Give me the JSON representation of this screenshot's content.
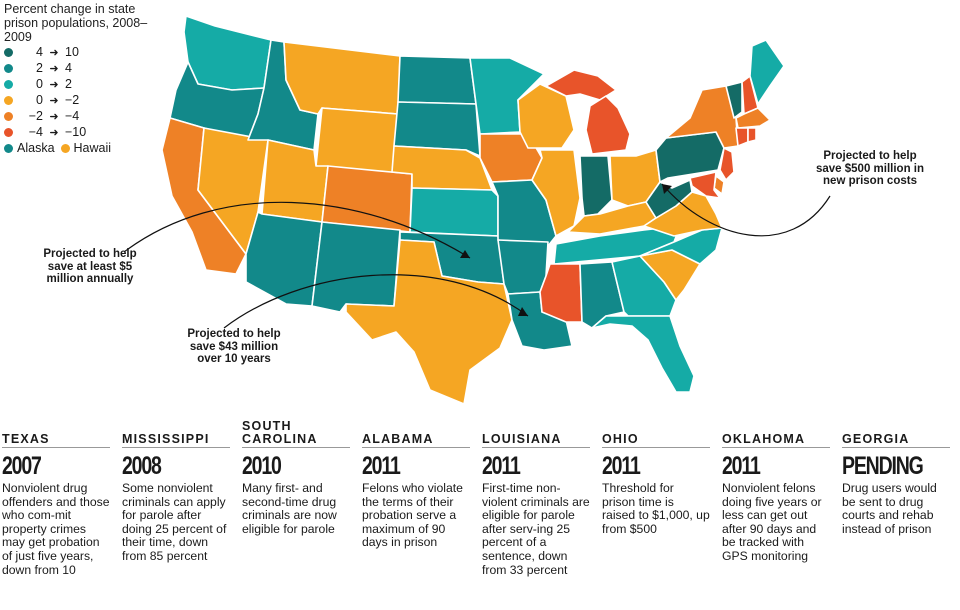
{
  "legend": {
    "title": "Percent change in state prison populations, 2008–2009",
    "rows": [
      {
        "a": "4",
        "b": "10",
        "color": "#146b66"
      },
      {
        "a": "2",
        "b": "4",
        "color": "#12898a"
      },
      {
        "a": "0",
        "b": "2",
        "color": "#15aba6"
      },
      {
        "a": "0",
        "b": "−2",
        "color": "#f5a623"
      },
      {
        "a": "−2",
        "b": "−4",
        "color": "#ee8126"
      },
      {
        "a": "−4",
        "b": "−10",
        "color": "#e8542a"
      }
    ],
    "arrow": "➜",
    "alaska": {
      "label": "Alaska",
      "color": "#12898a"
    },
    "hawaii": {
      "label": "Hawaii",
      "color": "#f5a623"
    }
  },
  "callouts": {
    "texas": "Projected to help save at least $5 million annually",
    "louisiana": "Projected to help save $43 million over 10 years",
    "northeast": "Projected to help save $500 million in new prison costs"
  },
  "policies": [
    {
      "state": "TEXAS",
      "year": "2007",
      "desc": "Nonviolent drug offenders and those who com-mit property crimes may get probation of just five years, down from 10"
    },
    {
      "state": "MISSISSIPPI",
      "year": "2008",
      "desc": "Some nonviolent criminals can apply for parole after doing 25 percent of their time, down from 85 percent"
    },
    {
      "state": "SOUTH CAROLINA",
      "year": "2010",
      "desc": "Many first- and second-time drug criminals are now eligible for parole"
    },
    {
      "state": "ALABAMA",
      "year": "2011",
      "desc": "Felons who violate the terms of their probation serve a maximum of 90 days in prison"
    },
    {
      "state": "LOUISIANA",
      "year": "2011",
      "desc": "First-time non-violent criminals are eligible for parole after serv-ing 25 percent of a sentence, down from 33 percent"
    },
    {
      "state": "OHIO",
      "year": "2011",
      "desc": "Threshold for prison time is raised to $1,000, up from $500"
    },
    {
      "state": "OKLAHOMA",
      "year": "2011",
      "desc": "Nonviolent felons doing five years or less can get out after 90 days and be tracked with GPS monitoring"
    },
    {
      "state": "GEORGIA",
      "year": "PENDING",
      "desc": "Drug users would be sent to drug courts and rehab instead of prison"
    }
  ]
}
